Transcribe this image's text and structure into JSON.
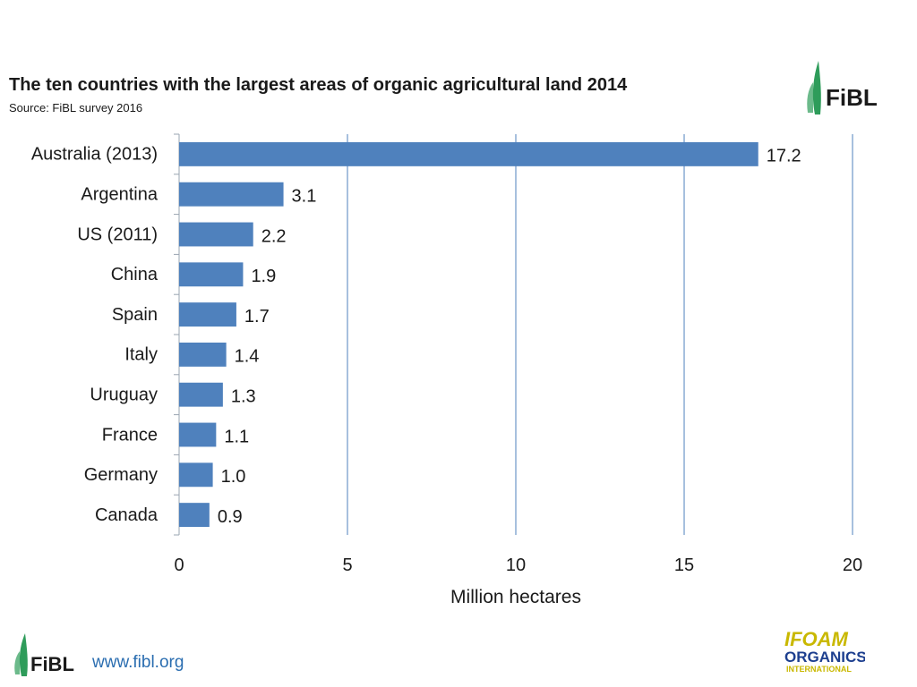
{
  "header": {
    "title": "The ten countries with the largest areas of organic agricultural land 2014",
    "source": "Source: FiBL survey 2016"
  },
  "logos": {
    "fibl": "FiBL",
    "ifoam_line1": "IFOAM",
    "ifoam_line2": "ORGANICS",
    "ifoam_line3": "INTERNATIONAL"
  },
  "footer": {
    "link": "www.fibl.org"
  },
  "colors": {
    "bar": "#4f81bd",
    "grid": "#4f81bd",
    "fibl_green": "#2e9c5a",
    "link": "#2a6db0",
    "ifoam_yellow": "#c9b800",
    "ifoam_blue": "#1d3f8f"
  },
  "chart_data": {
    "type": "bar",
    "orientation": "horizontal",
    "title": "The ten countries with the largest areas of organic agricultural land 2014",
    "subtitle": "Source: FiBL survey 2016",
    "categories": [
      "Australia (2013)",
      "Argentina",
      "US (2011)",
      "China",
      "Spain",
      "Italy",
      "Uruguay",
      "France",
      "Germany",
      "Canada"
    ],
    "values": [
      17.2,
      3.1,
      2.2,
      1.9,
      1.7,
      1.4,
      1.3,
      1.1,
      1.0,
      0.9
    ],
    "value_labels": [
      "17.2",
      "3.1",
      "2.2",
      "1.9",
      "1.7",
      "1.4",
      "1.3",
      "1.1",
      "1.0",
      "0.9"
    ],
    "xlabel": "Million hectares",
    "ylabel": "",
    "xlim": [
      0,
      20
    ],
    "x_ticks": [
      0,
      5,
      10,
      15,
      20
    ],
    "grid": true,
    "legend": "none"
  }
}
